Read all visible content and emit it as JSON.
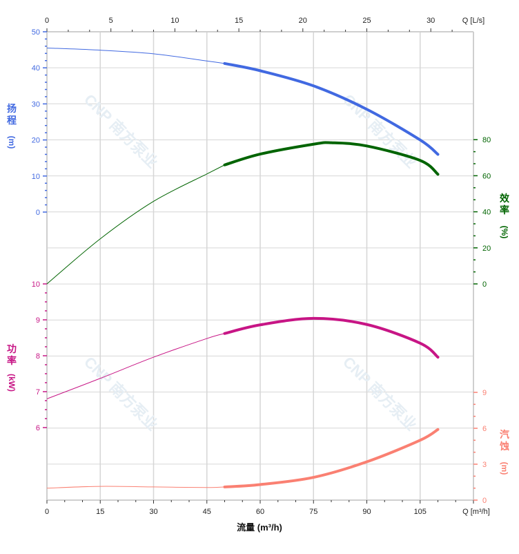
{
  "chart_data": {
    "type": "line",
    "x": {
      "label": "流量 (m³/h)",
      "unit_label": "Q [m³/h]",
      "range": [
        0,
        120
      ],
      "ticks": [
        0,
        15,
        30,
        45,
        60,
        75,
        90,
        105
      ]
    },
    "x2": {
      "unit_label": "Q [L/s]",
      "ticks": [
        0,
        5,
        10,
        15,
        20,
        25,
        30
      ]
    },
    "axes": {
      "head": {
        "label": "扬程",
        "unit": "(m)",
        "ticks": [
          0,
          10,
          20,
          30,
          40,
          50
        ],
        "color": "#4169e1"
      },
      "efficiency": {
        "label": "效率",
        "unit": "(%)",
        "ticks": [
          0,
          20,
          40,
          60,
          80
        ],
        "color": "#006400"
      },
      "power": {
        "label": "功率",
        "unit": "(kW)",
        "ticks": [
          6,
          7,
          8,
          9,
          10
        ],
        "color": "#c71585"
      },
      "npsh": {
        "label": "汽蚀",
        "unit": "(m)",
        "ticks": [
          0,
          3,
          6,
          9
        ],
        "color": "#fa8072"
      }
    },
    "operating_range": [
      50,
      110
    ],
    "grid": true,
    "series": [
      {
        "axis": "head",
        "points": [
          [
            0,
            45.5
          ],
          [
            15,
            44.9
          ],
          [
            30,
            43.9
          ],
          [
            45,
            41.9
          ],
          [
            50,
            41.2
          ],
          [
            60,
            39.2
          ],
          [
            75,
            35
          ],
          [
            90,
            28.5
          ],
          [
            105,
            20
          ],
          [
            110,
            16
          ]
        ]
      },
      {
        "axis": "efficiency",
        "points": [
          [
            0,
            0
          ],
          [
            15,
            25
          ],
          [
            30,
            45.8
          ],
          [
            45,
            61
          ],
          [
            50,
            66
          ],
          [
            60,
            72
          ],
          [
            75,
            77.5
          ],
          [
            80,
            78.3
          ],
          [
            90,
            76.5
          ],
          [
            105,
            68.5
          ],
          [
            110,
            60.8
          ]
        ]
      },
      {
        "axis": "power",
        "points": [
          [
            0,
            6.8
          ],
          [
            15,
            7.37
          ],
          [
            30,
            7.96
          ],
          [
            45,
            8.48
          ],
          [
            50,
            8.62
          ],
          [
            60,
            8.86
          ],
          [
            75,
            9.04
          ],
          [
            90,
            8.87
          ],
          [
            105,
            8.35
          ],
          [
            110,
            7.96
          ]
        ]
      },
      {
        "axis": "npsh",
        "points": [
          [
            0,
            1.0
          ],
          [
            15,
            1.15
          ],
          [
            30,
            1.1
          ],
          [
            45,
            1.05
          ],
          [
            50,
            1.1
          ],
          [
            60,
            1.3
          ],
          [
            75,
            1.9
          ],
          [
            90,
            3.2
          ],
          [
            105,
            5.0
          ],
          [
            110,
            5.9
          ]
        ]
      }
    ]
  },
  "watermark": "CNP 南方泵业"
}
